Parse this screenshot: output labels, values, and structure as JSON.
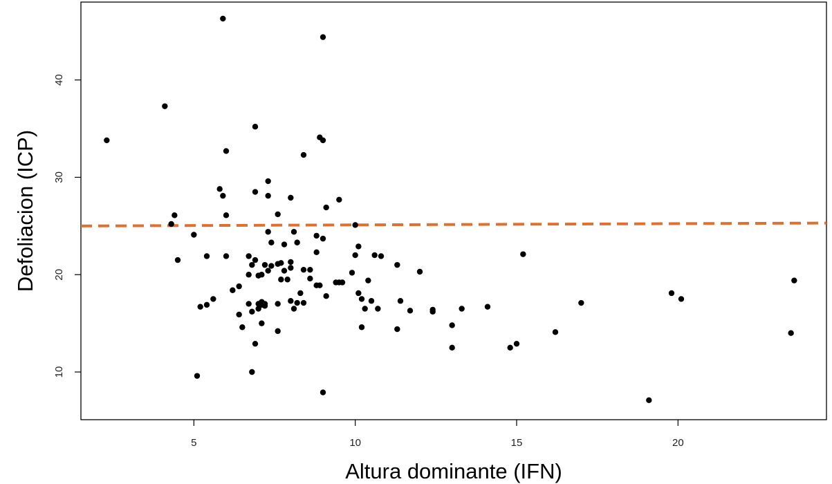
{
  "chart_data": {
    "type": "scatter",
    "title": "",
    "xlabel": "Altura dominante (IFN)",
    "ylabel": "Defoliacion (ICP)",
    "xlim": [
      1.5,
      24.6
    ],
    "ylim": [
      5.1,
      48.0
    ],
    "x_ticks": [
      "5",
      "10",
      "15",
      "20"
    ],
    "y_ticks": [
      "10",
      "20",
      "30",
      "40"
    ],
    "grid": false,
    "legend": "none",
    "point_color": "#000000",
    "reference_line": {
      "style": "dashed",
      "color": "#E07030",
      "x": [
        1.5,
        24.6
      ],
      "y": [
        25.0,
        25.3
      ]
    },
    "x": [
      5.9,
      9.0,
      4.1,
      2.3,
      6.9,
      8.9,
      9.0,
      6.0,
      8.4,
      7.3,
      5.8,
      5.9,
      6.9,
      7.3,
      8.0,
      9.5,
      7.6,
      9.1,
      6.0,
      4.4,
      4.3,
      10.0,
      5.0,
      7.3,
      8.8,
      9.0,
      7.8,
      8.2,
      7.4,
      8.1,
      5.4,
      6.0,
      6.7,
      4.5,
      6.9,
      7.7,
      7.6,
      8.0,
      10.8,
      11.3,
      12.0,
      10.0,
      10.1,
      10.6,
      15.2,
      9.6,
      8.6,
      7.7,
      7.9,
      9.4,
      9.5,
      7.2,
      7.1,
      6.7,
      7.0,
      6.8,
      6.2,
      6.4,
      7.4,
      8.6,
      8.4,
      8.0,
      7.8,
      7.3,
      9.1,
      7.6,
      6.7,
      7.0,
      7.2,
      7.1,
      8.8,
      8.9,
      9.9,
      10.2,
      10.5,
      10.4,
      8.0,
      8.4,
      8.2,
      8.1,
      8.3,
      11.4,
      11.7,
      12.4,
      12.4,
      13.0,
      13.3,
      14.1,
      17.0,
      19.8,
      20.1,
      23.6,
      23.5,
      19.1,
      16.2,
      15.0,
      14.8,
      13.0,
      11.3,
      10.7,
      10.2,
      10.3,
      10.1,
      8.8,
      5.2,
      5.4,
      5.6,
      6.5,
      6.4,
      7.0,
      7.1,
      7.2,
      7.1,
      7.6,
      6.9,
      6.8,
      5.1,
      6.8,
      9.0
    ],
    "y": [
      46.3,
      44.4,
      37.3,
      33.8,
      35.2,
      34.1,
      33.8,
      32.7,
      32.3,
      29.6,
      28.8,
      28.1,
      28.5,
      28.1,
      27.9,
      27.7,
      26.2,
      26.9,
      26.1,
      26.1,
      25.2,
      25.1,
      24.1,
      24.4,
      24.0,
      23.7,
      23.1,
      23.3,
      23.3,
      24.4,
      21.9,
      21.9,
      21.9,
      21.5,
      21.5,
      21.2,
      21.1,
      21.3,
      21.9,
      21.0,
      20.3,
      22.0,
      22.9,
      22.0,
      22.1,
      19.2,
      19.6,
      19.5,
      19.5,
      19.2,
      19.2,
      21.0,
      20.0,
      20.0,
      19.9,
      21.0,
      18.4,
      18.8,
      20.9,
      20.5,
      20.5,
      20.7,
      20.4,
      20.4,
      17.8,
      17.0,
      17.0,
      17.0,
      17.0,
      17.2,
      18.9,
      18.9,
      20.2,
      17.5,
      17.3,
      19.4,
      17.3,
      17.1,
      17.1,
      16.5,
      18.1,
      17.3,
      16.3,
      16.4,
      16.2,
      14.8,
      16.5,
      16.7,
      17.1,
      18.1,
      17.5,
      19.4,
      14.0,
      7.1,
      14.1,
      12.9,
      12.5,
      12.5,
      14.4,
      16.5,
      14.6,
      16.5,
      18.1,
      22.3,
      16.7,
      16.9,
      17.5,
      14.6,
      15.9,
      16.5,
      15.0,
      16.8,
      16.9,
      14.2,
      12.9,
      10.0,
      9.6,
      16.2,
      7.9
    ]
  }
}
